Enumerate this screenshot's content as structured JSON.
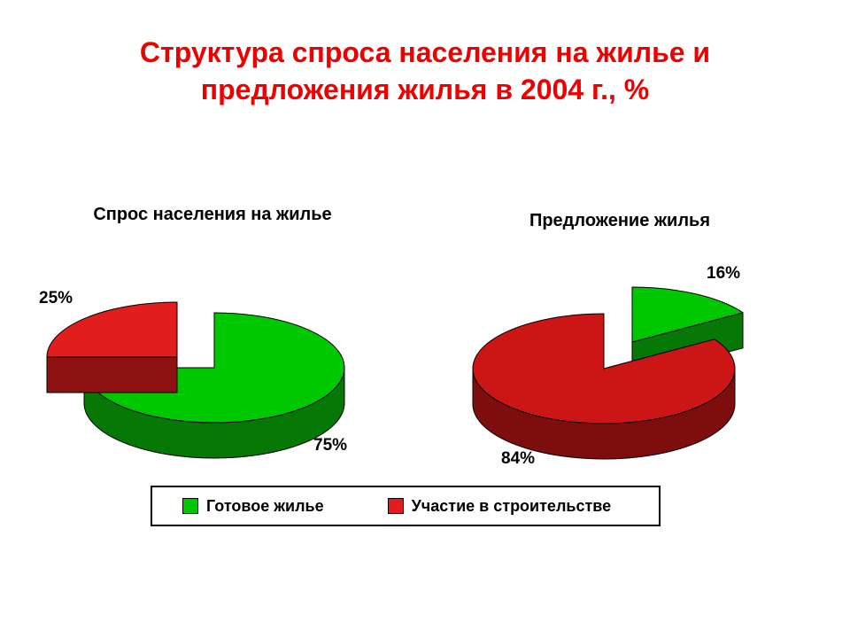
{
  "title": {
    "line1": "Структура спроса населения на жилье и",
    "line2": "предложения жилья в 2004 г., %"
  },
  "colors": {
    "title_text": "#ee0000",
    "green_top": "#00c800",
    "green_side": "#067806",
    "red_top": "#e11d1d",
    "red_side": "#8f1212",
    "red_top_dark": "#cc1515",
    "red_side_dark": "#7e0e0e"
  },
  "chart_data": [
    {
      "type": "pie",
      "title": "Спрос населения на жилье",
      "unit": "%",
      "slices": [
        {
          "name": "Готовое жилье",
          "pct": 75,
          "label": "75%",
          "color": "#00c800",
          "side_color": "#067806",
          "start_deg": 270,
          "explode": [
            0,
            0
          ]
        },
        {
          "name": "Участие в строительстве",
          "pct": 25,
          "label": "25%",
          "color": "#e11d1d",
          "side_color": "#8f1212",
          "start_deg": 180,
          "explode": [
            -42,
            -12
          ]
        }
      ]
    },
    {
      "type": "pie",
      "title": "Предложение жилья",
      "unit": "%",
      "slices": [
        {
          "name": "Готовое жилье",
          "pct": 16,
          "label": "16%",
          "color": "#00c800",
          "side_color": "#067806",
          "start_deg": 270,
          "explode": [
            32,
            -30
          ]
        },
        {
          "name": "Участие в строительстве",
          "pct": 84,
          "label": "84%",
          "color": "#cc1515",
          "side_color": "#7e0e0e",
          "start_deg": 327.6,
          "explode": [
            0,
            0
          ]
        }
      ]
    }
  ],
  "legend": {
    "items": [
      {
        "label": "Готовое жилье",
        "color": "#00c800"
      },
      {
        "label": "Участие в строительстве",
        "color": "#e11d1d"
      }
    ]
  }
}
